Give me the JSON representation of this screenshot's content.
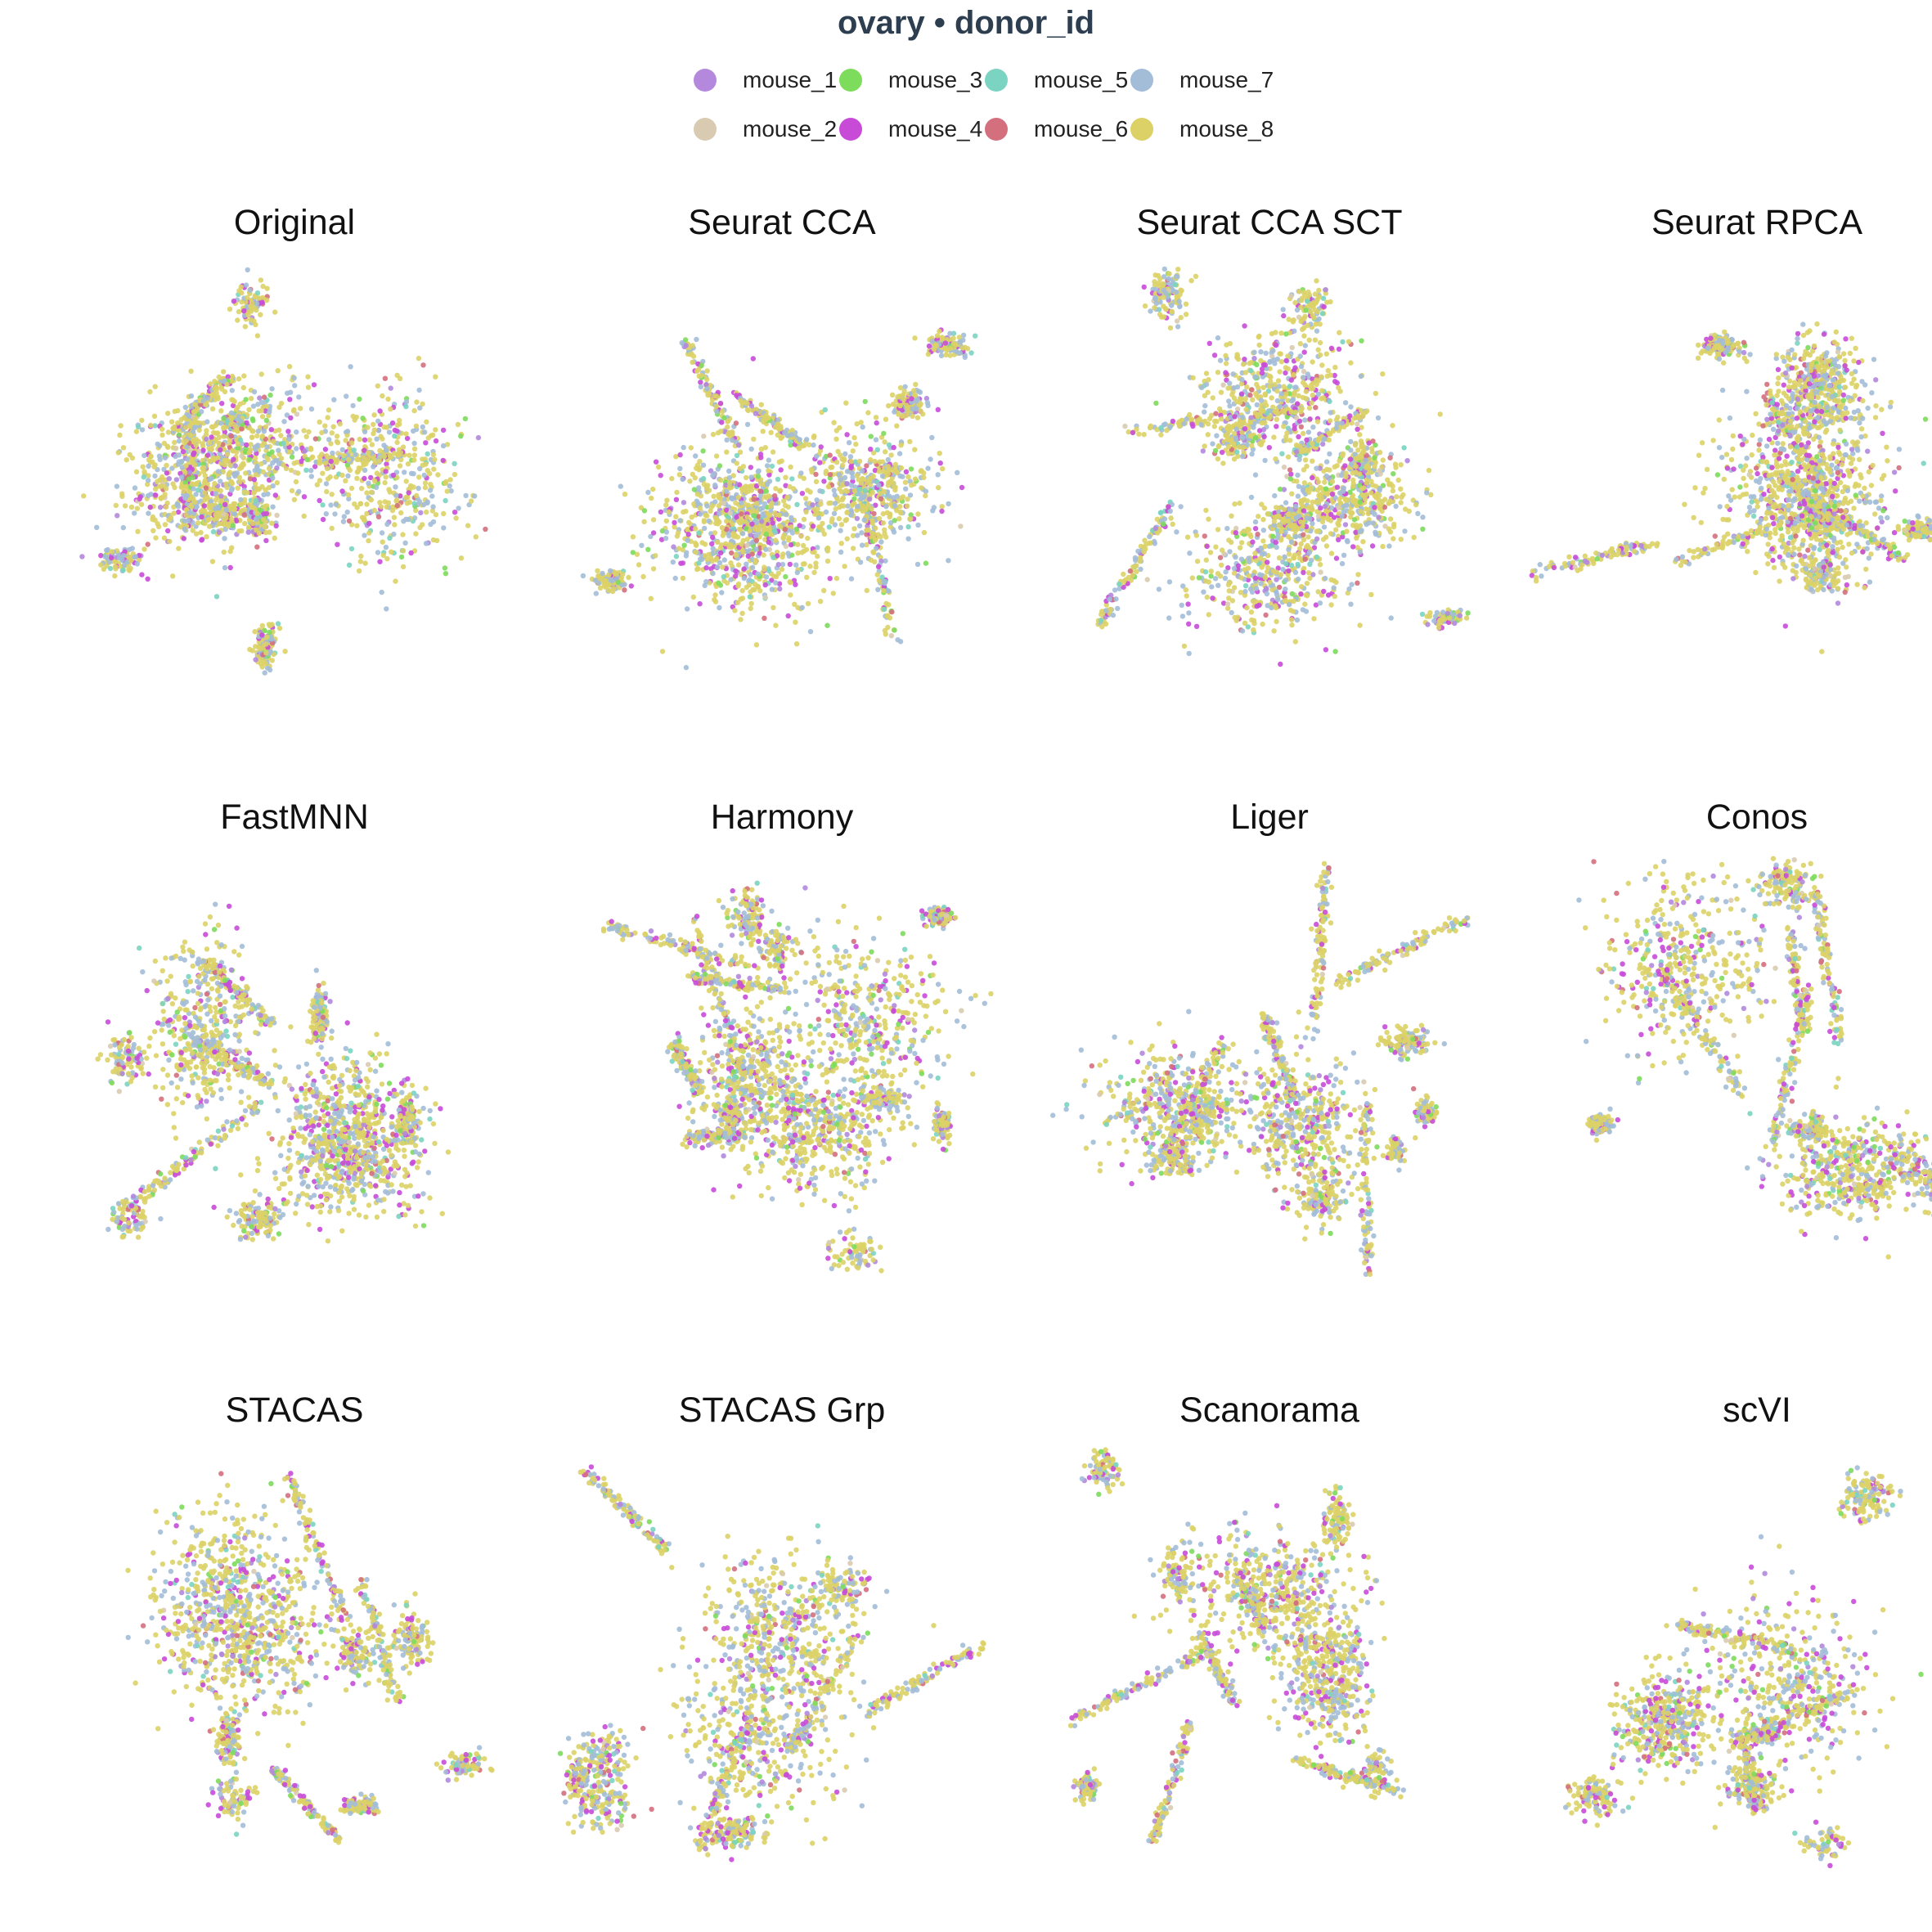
{
  "title": "ovary • donor_id",
  "legend": {
    "items": [
      {
        "label": "mouse_1",
        "color": "#b388dd"
      },
      {
        "label": "mouse_2",
        "color": "#d9cbb1"
      },
      {
        "label": "mouse_3",
        "color": "#7ddc5c"
      },
      {
        "label": "mouse_4",
        "color": "#c84bd8"
      },
      {
        "label": "mouse_5",
        "color": "#7ad4c1"
      },
      {
        "label": "mouse_6",
        "color": "#d4707e"
      },
      {
        "label": "mouse_7",
        "color": "#a3bcd8"
      },
      {
        "label": "mouse_8",
        "color": "#dcd167"
      }
    ]
  },
  "chart_data": [
    {
      "type": "scatter",
      "title": "Original",
      "axes": "none",
      "grid": false
    },
    {
      "type": "scatter",
      "title": "Seurat CCA",
      "axes": "none",
      "grid": false
    },
    {
      "type": "scatter",
      "title": "Seurat CCA SCT",
      "axes": "none",
      "grid": false
    },
    {
      "type": "scatter",
      "title": "Seurat RPCA",
      "axes": "none",
      "grid": false
    },
    {
      "type": "scatter",
      "title": "FastMNN",
      "axes": "none",
      "grid": false
    },
    {
      "type": "scatter",
      "title": "Harmony",
      "axes": "none",
      "grid": false
    },
    {
      "type": "scatter",
      "title": "Liger",
      "axes": "none",
      "grid": false
    },
    {
      "type": "scatter",
      "title": "Conos",
      "axes": "none",
      "grid": false
    },
    {
      "type": "scatter",
      "title": "STACAS",
      "axes": "none",
      "grid": false
    },
    {
      "type": "scatter",
      "title": "STACAS Grp",
      "axes": "none",
      "grid": false
    },
    {
      "type": "scatter",
      "title": "Scanorama",
      "axes": "none",
      "grid": false
    },
    {
      "type": "scatter",
      "title": "scVI",
      "axes": "none",
      "grid": false
    }
  ]
}
